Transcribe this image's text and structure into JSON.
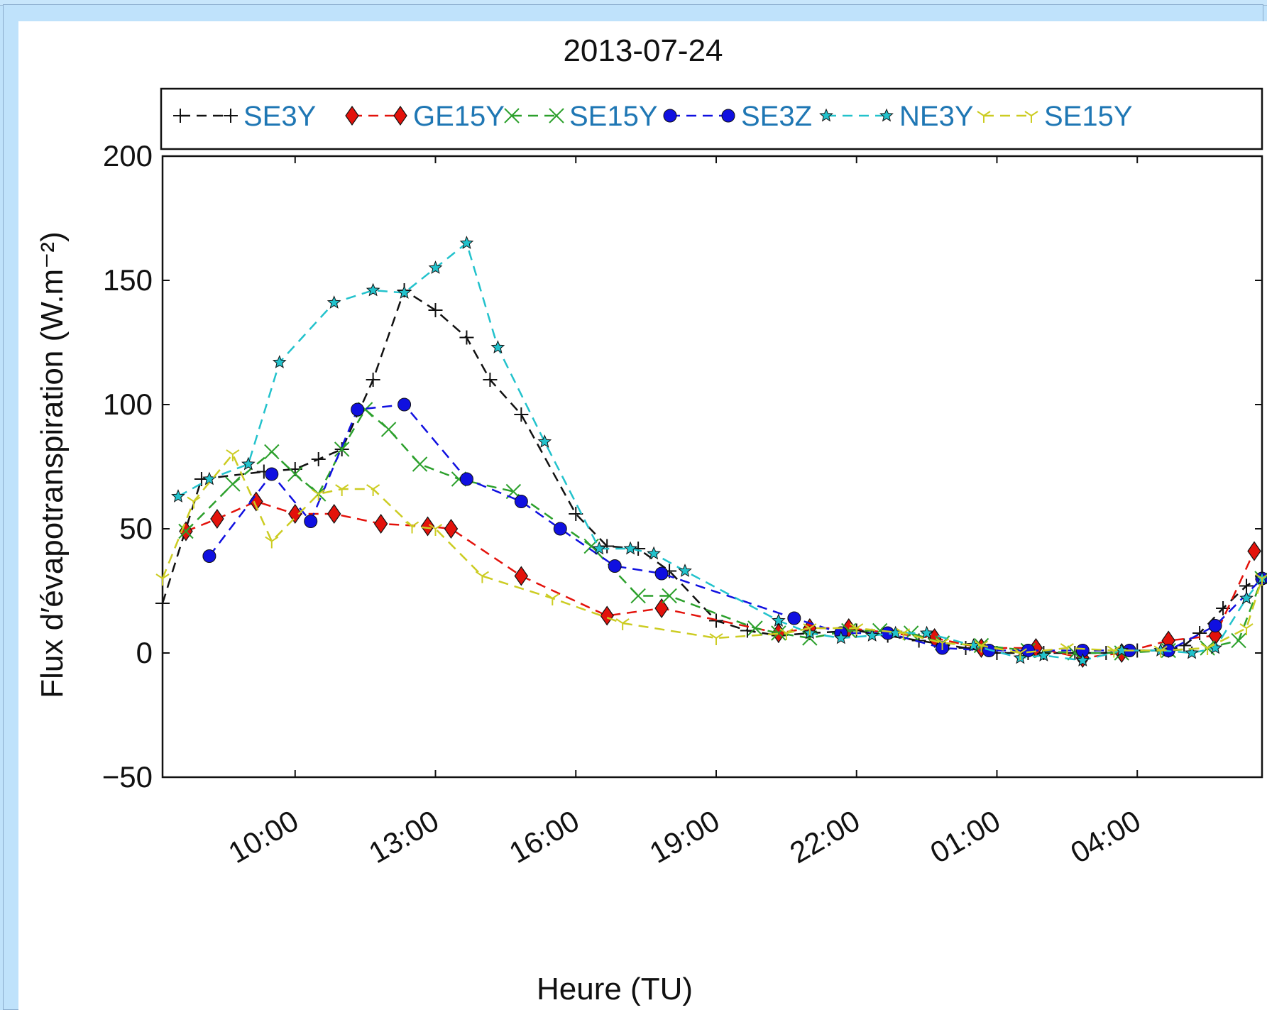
{
  "chart_data": {
    "type": "line",
    "title": "2013-07-24",
    "xlabel": "Heure (TU)",
    "ylabel": "Flux d′évapotranspiration (W.m⁻²)",
    "ylim": [
      -50,
      200
    ],
    "xlim": [
      "07:10",
      "06:40"
    ],
    "yticks": [
      "−50",
      "0",
      "50",
      "100",
      "150",
      "200"
    ],
    "ytick_values": [
      -50,
      0,
      50,
      100,
      150,
      200
    ],
    "xticks": [
      "10:00",
      "13:00",
      "16:00",
      "19:00",
      "22:00",
      "01:00",
      "04:00"
    ],
    "xtick_values": [
      "10:00",
      "13:00",
      "16:00",
      "19:00",
      "22:00",
      "01:00",
      "04:00"
    ],
    "grid": false,
    "legend_placement": "top",
    "series": [
      {
        "name": "SE3Y",
        "color": "#111111",
        "marker": "plus",
        "label_color": "#1f77b4",
        "x": [
          "07:10",
          "08:00",
          "09:20",
          "10:00",
          "10:30",
          "11:00",
          "11:40",
          "12:20",
          "13:00",
          "13:40",
          "14:10",
          "14:50",
          "16:00",
          "16:40",
          "17:20",
          "18:00",
          "19:00",
          "19:40",
          "20:20",
          "21:00",
          "22:00",
          "22:40",
          "23:20",
          "00:20",
          "01:00",
          "01:40",
          "02:00",
          "02:40",
          "03:20",
          "04:00",
          "04:40",
          "05:00",
          "05:20",
          "05:50",
          "06:20",
          "06:40"
        ],
        "y": [
          20,
          70,
          73,
          74,
          78,
          82,
          110,
          146,
          138,
          127,
          110,
          96,
          56,
          43,
          42,
          33,
          13,
          9,
          7,
          8,
          9,
          7,
          5,
          2,
          0,
          0,
          0,
          0,
          0,
          1,
          1,
          3,
          8,
          18,
          27,
          31
        ]
      },
      {
        "name": "GE15Y",
        "color": "#e3120b",
        "marker": "diamond",
        "label_color": "#1f77b4",
        "x": [
          "07:40",
          "08:20",
          "09:10",
          "10:00",
          "10:50",
          "11:50",
          "12:50",
          "13:20",
          "14:50",
          "16:40",
          "17:50",
          "20:20",
          "21:00",
          "21:50",
          "23:40",
          "00:40",
          "01:50",
          "02:50",
          "03:40",
          "04:40",
          "05:40",
          "06:30"
        ],
        "y": [
          49,
          54,
          61,
          56,
          56,
          52,
          51,
          50,
          31,
          15,
          18,
          8,
          10,
          10,
          6,
          2,
          2,
          -2,
          0,
          5,
          7,
          41
        ]
      },
      {
        "name": "SE15Y",
        "color": "#2ca02c",
        "marker": "x",
        "label_color": "#1f77b4",
        "x": [
          "07:40",
          "08:40",
          "09:30",
          "10:00",
          "10:30",
          "11:00",
          "11:30",
          "12:00",
          "12:40",
          "13:30",
          "14:40",
          "16:20",
          "17:20",
          "18:00",
          "19:50",
          "20:20",
          "21:00",
          "21:50",
          "22:30",
          "23:10",
          "23:50",
          "00:40",
          "01:40",
          "02:40",
          "03:40",
          "04:40",
          "05:30",
          "06:10",
          "06:40"
        ],
        "y": [
          49,
          68,
          81,
          72,
          64,
          82,
          98,
          90,
          76,
          70,
          65,
          43,
          23,
          23,
          10,
          8,
          6,
          9,
          9,
          8,
          4,
          3,
          1,
          0,
          0,
          1,
          2,
          5,
          30
        ]
      },
      {
        "name": "SE3Z",
        "color": "#1010e0",
        "marker": "circle",
        "label_color": "#1f77b4",
        "x": [
          "08:10",
          "09:30",
          "10:20",
          "11:20",
          "12:20",
          "13:40",
          "14:50",
          "15:40",
          "16:50",
          "17:50",
          "20:40",
          "21:40",
          "22:40",
          "23:50",
          "00:50",
          "01:40",
          "02:50",
          "03:50",
          "04:40",
          "05:40",
          "06:40"
        ],
        "y": [
          39,
          72,
          53,
          98,
          100,
          70,
          61,
          50,
          35,
          32,
          14,
          8,
          8,
          2,
          1,
          1,
          1,
          1,
          1,
          11,
          30
        ]
      },
      {
        "name": "NE3Y",
        "color": "#22c2cc",
        "marker": "star",
        "label_color": "#1f77b4",
        "x": [
          "07:30",
          "08:10",
          "09:00",
          "09:40",
          "10:50",
          "11:40",
          "12:20",
          "13:00",
          "13:40",
          "14:20",
          "15:20",
          "16:30",
          "17:10",
          "17:40",
          "18:20",
          "20:20",
          "21:00",
          "21:40",
          "22:20",
          "22:50",
          "23:30",
          "00:30",
          "01:30",
          "02:00",
          "02:50",
          "03:40",
          "04:30",
          "05:10",
          "05:40",
          "06:20",
          "06:40"
        ],
        "y": [
          63,
          70,
          76,
          117,
          141,
          146,
          145,
          155,
          165,
          123,
          85,
          42,
          42,
          40,
          33,
          13,
          8,
          6,
          7,
          8,
          8,
          3,
          -2,
          -1,
          -3,
          1,
          1,
          0,
          2,
          22,
          30
        ]
      },
      {
        "name": "SE15Y",
        "color": "#cccc22",
        "marker": "tri_down",
        "label_color": "#1f77b4",
        "x": [
          "07:10",
          "07:50",
          "08:40",
          "09:30",
          "10:30",
          "11:00",
          "11:40",
          "12:30",
          "13:00",
          "14:00",
          "15:30",
          "17:00",
          "19:00",
          "20:30",
          "21:00",
          "22:00",
          "23:00",
          "23:50",
          "00:40",
          "01:30",
          "02:30",
          "03:30",
          "04:30",
          "05:30",
          "06:20",
          "06:40"
        ],
        "y": [
          30,
          61,
          80,
          45,
          64,
          66,
          66,
          51,
          50,
          31,
          22,
          12,
          6,
          8,
          10,
          10,
          8,
          4,
          3,
          0,
          2,
          1,
          1,
          2,
          10,
          30
        ]
      }
    ]
  }
}
